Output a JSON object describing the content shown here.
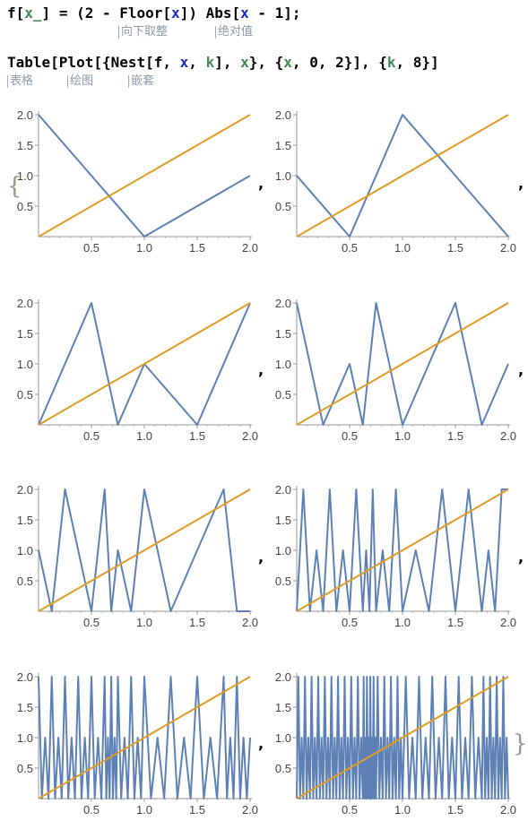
{
  "code": {
    "line1": {
      "name": "f",
      "open": "[",
      "param": "x_",
      "close": "]",
      "middle": " = (2 - Floor[",
      "arg1": "x",
      "after1": "]) Abs[",
      "arg2": "x",
      "tail": " - 1];"
    },
    "line1_hints": [
      "向下取整",
      "绝对值"
    ],
    "line2": {
      "head": "Table[Plot[{Nest[f, ",
      "x1": "x",
      "sep1": ", ",
      "k1": "k",
      "sep2": "], ",
      "x2": "x",
      "sep3": "}, {",
      "x3": "x",
      "range": ", 0, 2}], {",
      "k2": "k",
      "tail": ", 8}]"
    },
    "line2_hints": [
      "表格",
      "绘图",
      "嵌套"
    ]
  },
  "output": {
    "separator": ",",
    "open_brace": "{",
    "close_brace": "}"
  },
  "chart_data": [
    {
      "type": "line",
      "iterations": 1,
      "xlim": [
        0,
        2
      ],
      "ylim": [
        0,
        2
      ],
      "xticks": [
        "0.5",
        "1.0",
        "1.5",
        "2.0"
      ],
      "yticks": [
        "0.5",
        "1.0",
        "1.5",
        "2.0"
      ],
      "series": [
        {
          "color": "#5e81b5",
          "x": [
            0,
            1,
            2
          ],
          "y": [
            2,
            0,
            1
          ]
        },
        {
          "color": "#e19c24",
          "x": [
            0,
            2
          ],
          "y": [
            0,
            2
          ]
        }
      ]
    },
    {
      "type": "line",
      "iterations": 2,
      "xlim": [
        0,
        2
      ],
      "ylim": [
        0,
        2
      ],
      "xticks": [
        "0.5",
        "1.0",
        "1.5",
        "2.0"
      ],
      "yticks": [
        "0.5",
        "1.0",
        "1.5",
        "2.0"
      ],
      "series": [
        {
          "color": "#5e81b5",
          "x": [
            0,
            0.5,
            1,
            2
          ],
          "y": [
            1,
            0,
            2,
            0
          ]
        },
        {
          "color": "#e19c24",
          "x": [
            0,
            2
          ],
          "y": [
            0,
            2
          ]
        }
      ]
    },
    {
      "type": "line",
      "iterations": 3,
      "xlim": [
        0,
        2
      ],
      "ylim": [
        0,
        2
      ],
      "xticks": [
        "0.5",
        "1.0",
        "1.5",
        "2.0"
      ],
      "yticks": [
        "0.5",
        "1.0",
        "1.5",
        "2.0"
      ],
      "series": [
        {
          "color": "#5e81b5",
          "x": [
            0,
            0.5,
            0.75,
            1,
            1.5,
            2
          ],
          "y": [
            0,
            2,
            0,
            1,
            0,
            2
          ]
        },
        {
          "color": "#e19c24",
          "x": [
            0,
            2
          ],
          "y": [
            0,
            2
          ]
        }
      ]
    },
    {
      "type": "line",
      "iterations": 4,
      "xlim": [
        0,
        2
      ],
      "ylim": [
        0,
        2
      ],
      "xticks": [
        "0.5",
        "1.0",
        "1.5",
        "2.0"
      ],
      "yticks": [
        "0.5",
        "1.0",
        "1.5",
        "2.0"
      ],
      "series": [
        {
          "color": "#5e81b5",
          "x": [
            0,
            0.25,
            0.5,
            0.625,
            0.75,
            1,
            1.5,
            1.75,
            2
          ],
          "y": [
            2,
            0,
            1,
            0,
            2,
            0,
            2,
            0,
            1
          ]
        },
        {
          "color": "#e19c24",
          "x": [
            0,
            2
          ],
          "y": [
            0,
            2
          ]
        }
      ]
    },
    {
      "type": "line",
      "iterations": 5,
      "xlim": [
        0,
        2
      ],
      "ylim": [
        0,
        2
      ],
      "xticks": [
        "0.5",
        "1.0",
        "1.5",
        "2.0"
      ],
      "yticks": [
        "0.5",
        "1.0",
        "1.5",
        "2.0"
      ],
      "series": [
        {
          "color": "#5e81b5",
          "x": [
            0,
            0.125,
            0.25,
            0.5,
            0.625,
            0.6875,
            0.75,
            0.875,
            1,
            1.25,
            1.5,
            1.75,
            1.875,
            2
          ],
          "y": [
            1,
            0,
            2,
            0,
            2,
            0,
            1,
            0,
            2,
            0,
            1,
            2,
            0,
            0
          ]
        },
        {
          "color": "#e19c24",
          "x": [
            0,
            2
          ],
          "y": [
            0,
            2
          ]
        }
      ]
    },
    {
      "type": "line",
      "iterations": 6,
      "xlim": [
        0,
        2
      ],
      "ylim": [
        0,
        2
      ],
      "xticks": [
        "0.5",
        "1.0",
        "1.5",
        "2.0"
      ],
      "yticks": [
        "0.5",
        "1.0",
        "1.5",
        "2.0"
      ],
      "series": [
        {
          "color": "#5e81b5",
          "x": [
            0,
            0.0625,
            0.125,
            0.1875,
            0.25,
            0.3125,
            0.375,
            0.4375,
            0.5,
            0.5625,
            0.625,
            0.65625,
            0.6875,
            0.71875,
            0.75,
            0.8125,
            0.875,
            0.9375,
            1,
            1.125,
            1.25,
            1.375,
            1.5,
            1.625,
            1.75,
            1.8125,
            1.875,
            1.9375,
            2
          ],
          "y": [
            0,
            2,
            0,
            1,
            0,
            2,
            0,
            1,
            0,
            2,
            0,
            1,
            0,
            2,
            0,
            1,
            0,
            2,
            0,
            1,
            0,
            2,
            0,
            2,
            0,
            1,
            0,
            2,
            2
          ]
        },
        {
          "color": "#e19c24",
          "x": [
            0,
            2
          ],
          "y": [
            0,
            2
          ]
        }
      ]
    },
    {
      "type": "line",
      "iterations": 7,
      "xlim": [
        0,
        2
      ],
      "ylim": [
        0,
        2
      ],
      "xticks": [
        "0.5",
        "1.0",
        "1.5",
        "2.0"
      ],
      "yticks": [
        "0.5",
        "1.0",
        "1.5",
        "2.0"
      ],
      "series": [
        {
          "color": "#5e81b5",
          "x": [
            0,
            0.03125,
            0.0625,
            0.09375,
            0.125,
            0.15625,
            0.1875,
            0.21875,
            0.25,
            0.28125,
            0.3125,
            0.34375,
            0.375,
            0.40625,
            0.4375,
            0.46875,
            0.5,
            0.53125,
            0.5625,
            0.59375,
            0.625,
            0.640625,
            0.65625,
            0.671875,
            0.6875,
            0.703125,
            0.71875,
            0.734375,
            0.75,
            0.78125,
            0.8125,
            0.84375,
            0.875,
            0.90625,
            0.9375,
            0.96875,
            1,
            1.0625,
            1.125,
            1.1875,
            1.25,
            1.3125,
            1.375,
            1.4375,
            1.5,
            1.5625,
            1.625,
            1.6875,
            1.75,
            1.78125,
            1.8125,
            1.84375,
            1.875,
            1.90625,
            1.9375,
            1.96875,
            2
          ],
          "y": [
            2,
            0,
            1,
            0,
            2,
            0,
            1,
            0,
            2,
            0,
            1,
            0,
            2,
            0,
            1,
            0,
            2,
            0,
            1,
            0,
            2,
            0,
            1,
            0,
            2,
            0,
            1,
            0,
            2,
            0,
            1,
            0,
            2,
            0,
            1,
            0,
            2,
            0,
            1,
            0,
            2,
            0,
            1,
            0,
            2,
            0,
            1,
            0,
            2,
            0,
            1,
            0,
            2,
            0,
            1,
            0,
            1
          ]
        },
        {
          "color": "#e19c24",
          "x": [
            0,
            2
          ],
          "y": [
            0,
            2
          ]
        }
      ]
    },
    {
      "type": "line",
      "iterations": 8,
      "xlim": [
        0,
        2
      ],
      "ylim": [
        0,
        2
      ],
      "xticks": [
        "0.5",
        "1.0",
        "1.5",
        "2.0"
      ],
      "yticks": [
        "0.5",
        "1.0",
        "1.5",
        "2.0"
      ],
      "series": [
        {
          "color": "#5e81b5",
          "x": [
            0,
            0.015625,
            0.03125,
            0.046875,
            0.0625,
            0.078125,
            0.09375,
            0.109375,
            0.125,
            0.140625,
            0.15625,
            0.171875,
            0.1875,
            0.203125,
            0.21875,
            0.234375,
            0.25,
            0.265625,
            0.28125,
            0.296875,
            0.3125,
            0.328125,
            0.34375,
            0.359375,
            0.375,
            0.390625,
            0.40625,
            0.421875,
            0.4375,
            0.453125,
            0.46875,
            0.484375,
            0.5,
            0.515625,
            0.53125,
            0.546875,
            0.5625,
            0.578125,
            0.59375,
            0.609375,
            0.625,
            0.6328125,
            0.640625,
            0.6484375,
            0.65625,
            0.6640625,
            0.671875,
            0.6796875,
            0.6875,
            0.6953125,
            0.703125,
            0.7109375,
            0.71875,
            0.7265625,
            0.734375,
            0.7421875,
            0.75,
            0.765625,
            0.78125,
            0.796875,
            0.8125,
            0.828125,
            0.84375,
            0.859375,
            0.875,
            0.890625,
            0.90625,
            0.921875,
            0.9375,
            0.953125,
            0.96875,
            0.984375,
            1,
            1.03125,
            1.0625,
            1.09375,
            1.125,
            1.15625,
            1.1875,
            1.21875,
            1.25,
            1.28125,
            1.3125,
            1.34375,
            1.375,
            1.40625,
            1.4375,
            1.46875,
            1.5,
            1.53125,
            1.5625,
            1.59375,
            1.625,
            1.65625,
            1.6875,
            1.71875,
            1.75,
            1.765625,
            1.78125,
            1.796875,
            1.8125,
            1.828125,
            1.84375,
            1.859375,
            1.875,
            1.890625,
            1.90625,
            1.921875,
            1.9375,
            1.953125,
            1.96875,
            1.984375,
            2
          ],
          "y": [
            0,
            2,
            0,
            1,
            0,
            2,
            0,
            1,
            0,
            2,
            0,
            1,
            0,
            2,
            0,
            1,
            0,
            2,
            0,
            1,
            0,
            2,
            0,
            1,
            0,
            2,
            0,
            1,
            0,
            2,
            0,
            1,
            0,
            2,
            0,
            1,
            0,
            2,
            0,
            1,
            0,
            2,
            0,
            1,
            0,
            2,
            0,
            1,
            0,
            2,
            0,
            1,
            0,
            2,
            0,
            1,
            0,
            2,
            0,
            1,
            0,
            2,
            0,
            1,
            0,
            2,
            0,
            1,
            0,
            2,
            0,
            1,
            0,
            2,
            0,
            1,
            0,
            2,
            0,
            1,
            0,
            2,
            0,
            1,
            0,
            2,
            0,
            1,
            0,
            2,
            0,
            1,
            0,
            2,
            0,
            1,
            0,
            2,
            0,
            1,
            0,
            2,
            0,
            1,
            0,
            2,
            0,
            1,
            0,
            2,
            0,
            1,
            0
          ]
        },
        {
          "color": "#e19c24",
          "x": [
            0,
            2
          ],
          "y": [
            0,
            2
          ]
        }
      ]
    }
  ]
}
